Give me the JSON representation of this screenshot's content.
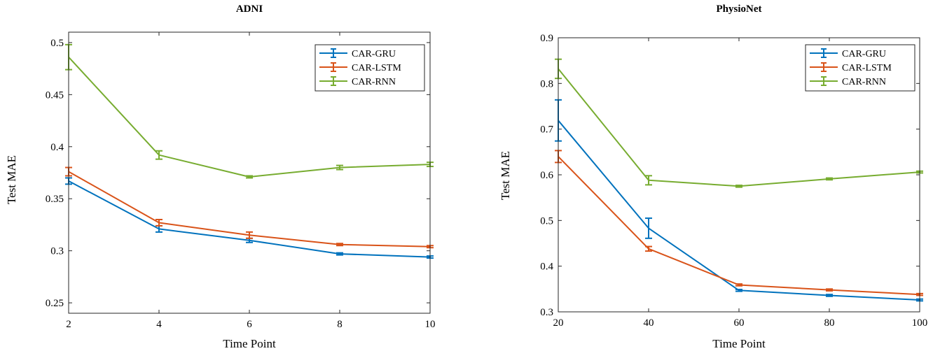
{
  "colors": {
    "gru": "#0072BD",
    "lstm": "#D95319",
    "rnn": "#77AC30"
  },
  "chart_data": [
    {
      "type": "line",
      "title": "ADNI",
      "xlabel": "Time Point",
      "ylabel": "Test MAE",
      "x": [
        2,
        4,
        6,
        8,
        10
      ],
      "xticks": [
        2,
        4,
        6,
        8,
        10
      ],
      "xtick_labels": [
        "2",
        "4",
        "6",
        "8",
        "10"
      ],
      "yticks": [
        0.25,
        0.3,
        0.35,
        0.4,
        0.45,
        0.5
      ],
      "ytick_labels": [
        "0.25",
        "0.3",
        "0.35",
        "0.4",
        "0.45",
        "0.5"
      ],
      "xlim": [
        2,
        10
      ],
      "ylim": [
        0.24,
        0.51
      ],
      "legend_position": "top-right",
      "series": [
        {
          "name": "CAR-GRU",
          "color": "#0072BD",
          "values": [
            0.367,
            0.321,
            0.31,
            0.297,
            0.294
          ],
          "errors": [
            0.003,
            0.003,
            0.002,
            0.001,
            0.001
          ]
        },
        {
          "name": "CAR-LSTM",
          "color": "#D95319",
          "values": [
            0.376,
            0.327,
            0.315,
            0.306,
            0.304
          ],
          "errors": [
            0.004,
            0.003,
            0.003,
            0.001,
            0.001
          ]
        },
        {
          "name": "CAR-RNN",
          "color": "#77AC30",
          "values": [
            0.486,
            0.392,
            0.371,
            0.38,
            0.383
          ],
          "errors": [
            0.012,
            0.004,
            0.001,
            0.002,
            0.002
          ]
        }
      ]
    },
    {
      "type": "line",
      "title": "PhysioNet",
      "xlabel": "Time Point",
      "ylabel": "Test MAE",
      "x": [
        20,
        40,
        60,
        80,
        100
      ],
      "xticks": [
        20,
        40,
        60,
        80,
        100
      ],
      "xtick_labels": [
        "20",
        "40",
        "60",
        "80",
        "100"
      ],
      "yticks": [
        0.3,
        0.4,
        0.5,
        0.6,
        0.7,
        0.8,
        0.9
      ],
      "ytick_labels": [
        "0.3",
        "0.4",
        "0.5",
        "0.6",
        "0.7",
        "0.8",
        "0.9"
      ],
      "xlim": [
        20,
        100
      ],
      "ylim": [
        0.3,
        0.9
      ],
      "legend_position": "top-right",
      "series": [
        {
          "name": "CAR-GRU",
          "color": "#0072BD",
          "values": [
            0.719,
            0.483,
            0.347,
            0.336,
            0.326
          ],
          "errors": [
            0.045,
            0.022,
            0.002,
            0.002,
            0.002
          ]
        },
        {
          "name": "CAR-LSTM",
          "color": "#D95319",
          "values": [
            0.64,
            0.438,
            0.359,
            0.348,
            0.338
          ],
          "errors": [
            0.013,
            0.005,
            0.002,
            0.002,
            0.002
          ]
        },
        {
          "name": "CAR-RNN",
          "color": "#77AC30",
          "values": [
            0.832,
            0.588,
            0.575,
            0.591,
            0.606
          ],
          "errors": [
            0.021,
            0.01,
            0.002,
            0.002,
            0.002
          ]
        }
      ]
    }
  ]
}
